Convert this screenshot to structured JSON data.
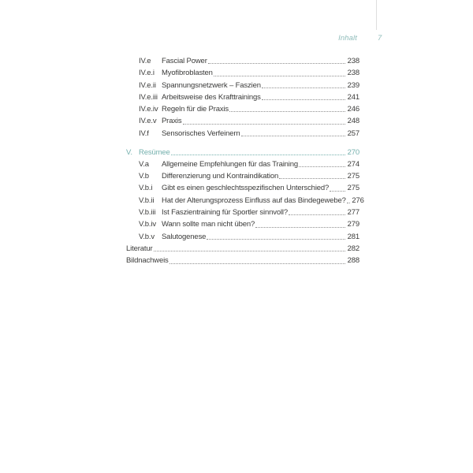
{
  "header": {
    "running_title": "Inhalt",
    "page_number": "7"
  },
  "colors": {
    "accent": "#74b0ad",
    "header_accent": "#8fbcba",
    "text": "#3b3b3a",
    "leader_dots": "#8f8f8f",
    "header_rule": "#dedede"
  },
  "toc": {
    "items": [
      {
        "label": "IV.e",
        "title": "Fascial Power",
        "page": "238",
        "style": "sub"
      },
      {
        "label": "IV.e.i",
        "title": "Myofibroblasten",
        "page": "238",
        "style": "sub"
      },
      {
        "label": "IV.e.ii",
        "title": "Spannungsnetzwerk – Faszien",
        "page": "239",
        "style": "sub"
      },
      {
        "label": "IV.e.iii",
        "title": "Arbeitsweise des Krafttrainings",
        "page": "241",
        "style": "sub"
      },
      {
        "label": "IV.e.iv",
        "title": "Regeln für die Praxis",
        "page": "246",
        "style": "sub"
      },
      {
        "label": "IV.e.v",
        "title": "Praxis",
        "page": "248",
        "style": "sub"
      },
      {
        "label": "IV.f",
        "title": "Sensorisches Verfeinern",
        "page": "257",
        "style": "sub"
      },
      {
        "label": "V.",
        "title": "Resümee",
        "page": "270",
        "style": "chapter",
        "section_start": true
      },
      {
        "label": "V.a",
        "title": "Allgemeine Empfehlungen für das Training",
        "page": "274",
        "style": "sub"
      },
      {
        "label": "V.b",
        "title": "Differenzierung und Kontraindikation",
        "page": "275",
        "style": "sub"
      },
      {
        "label": "V.b.i",
        "title": "Gibt es einen geschlechtsspezifischen Unterschied?",
        "page": "275",
        "style": "sub"
      },
      {
        "label": "V.b.ii",
        "title": "Hat der Alterungsprozess Einfluss auf das Bindegewebe?",
        "page": "276",
        "style": "sub"
      },
      {
        "label": "V.b.iii",
        "title": "Ist Faszientraining für Sportler sinnvoll?",
        "page": "277",
        "style": "sub"
      },
      {
        "label": "V.b.iv",
        "title": "Wann sollte man nicht üben?",
        "page": "279",
        "style": "sub"
      },
      {
        "label": "V.b.v",
        "title": "Salutogenese",
        "page": "281",
        "style": "sub"
      },
      {
        "label": "",
        "title": "Literatur",
        "page": "282",
        "style": "top"
      },
      {
        "label": "",
        "title": "Bildnachweis",
        "page": "288",
        "style": "top"
      }
    ]
  }
}
